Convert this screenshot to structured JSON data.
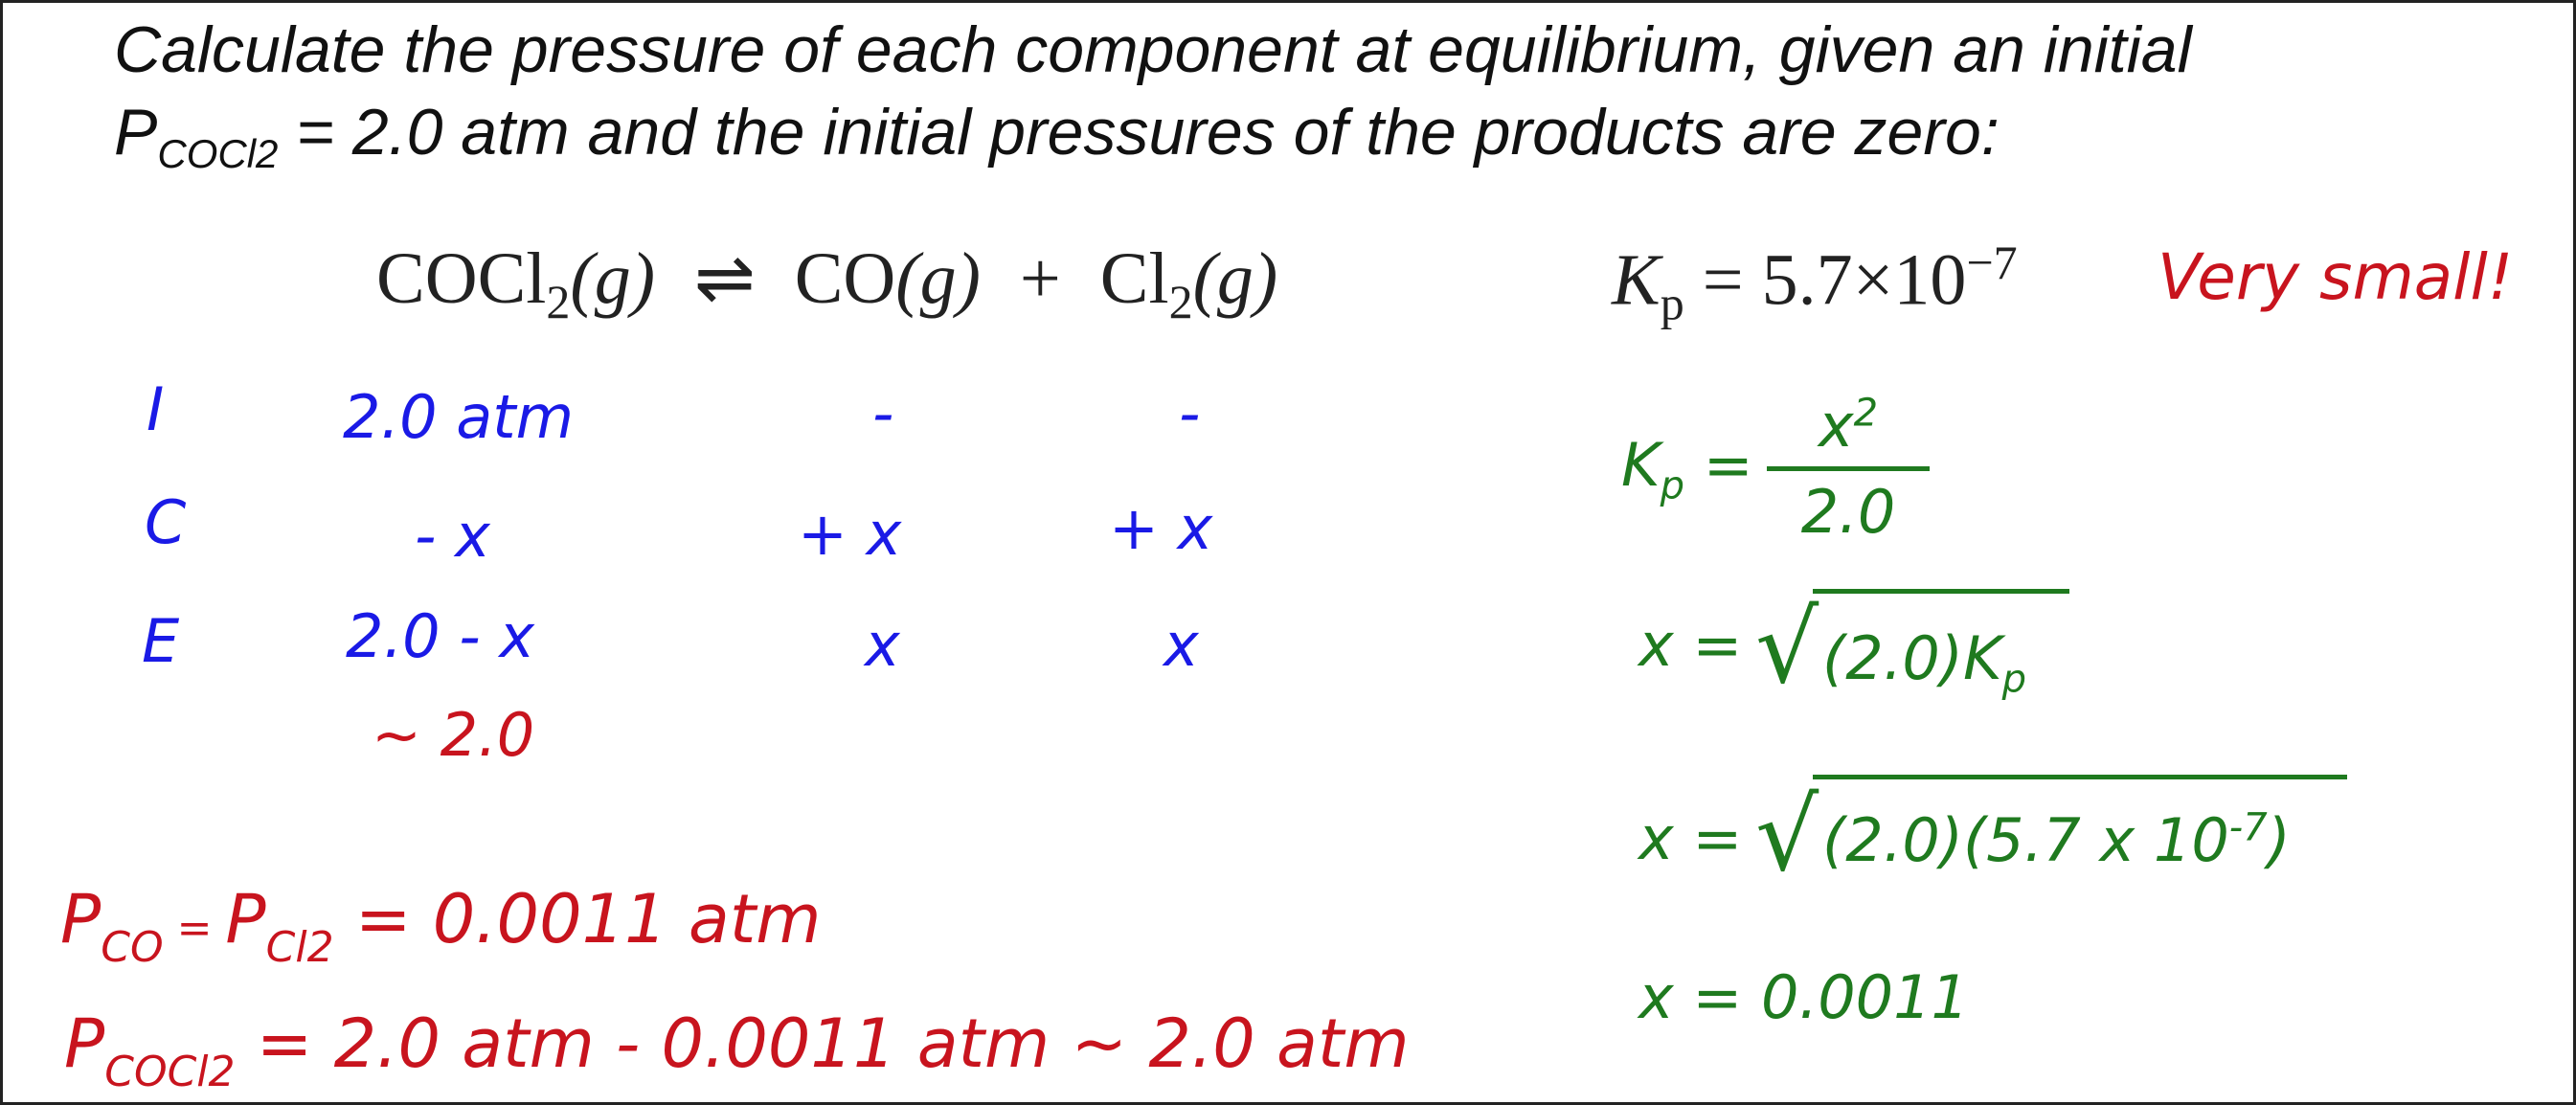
{
  "question": {
    "line1": "Calculate the pressure of each component at equilibrium, given an initial",
    "line2_P": "P",
    "line2_sub": "COCl2",
    "line2_rest": " = 2.0 atm and the initial pressures of the products are zero:"
  },
  "equation": {
    "reactant": "COCl",
    "reactant_sub": "2",
    "reactant_phase": "(g)",
    "arrow": "⇌",
    "product1": "CO",
    "product1_phase": "(g)",
    "plus": "+",
    "product2": "Cl",
    "product2_sub": "2",
    "product2_phase": "(g)"
  },
  "kp": {
    "K": "K",
    "sub": "p",
    "value": " = 5.7×10",
    "exp": "−7",
    "note": "Very small!"
  },
  "ice_table": {
    "rows": [
      {
        "label": "I",
        "reactant": "2.0  atm",
        "product1": "-",
        "product2": "-"
      },
      {
        "label": "C",
        "reactant": "- x",
        "product1": "+ x",
        "product2": "+ x"
      },
      {
        "label": "E",
        "reactant": "2.0 - x",
        "product1": "x",
        "product2": "x"
      }
    ],
    "approx": "~ 2.0"
  },
  "work": {
    "kp_lhs": "K",
    "kp_lhs_sub": "p",
    "eq": "=",
    "num": "x",
    "num_exp": "2",
    "den": "2.0",
    "step2_lhs": "x  =",
    "step2_radicand": "(2.0)K",
    "step2_sub": "p",
    "step3_lhs": "x  =",
    "step3_radicand": "(2.0)(5.7 x 10",
    "step3_exp": "-7",
    "step3_close": ")",
    "step4": "x  =  0.0011"
  },
  "results": {
    "line1_P1": "P",
    "line1_sub1": "CO",
    "line1_eq1": " = ",
    "line1_P2": "P",
    "line1_sub2": "Cl2",
    "line1_rest": "  =  0.0011  atm",
    "line2_P": "P",
    "line2_sub": "COCl2",
    "line2_rest": "  =  2.0  atm  -  0.0011  atm   ~ 2.0  atm"
  }
}
